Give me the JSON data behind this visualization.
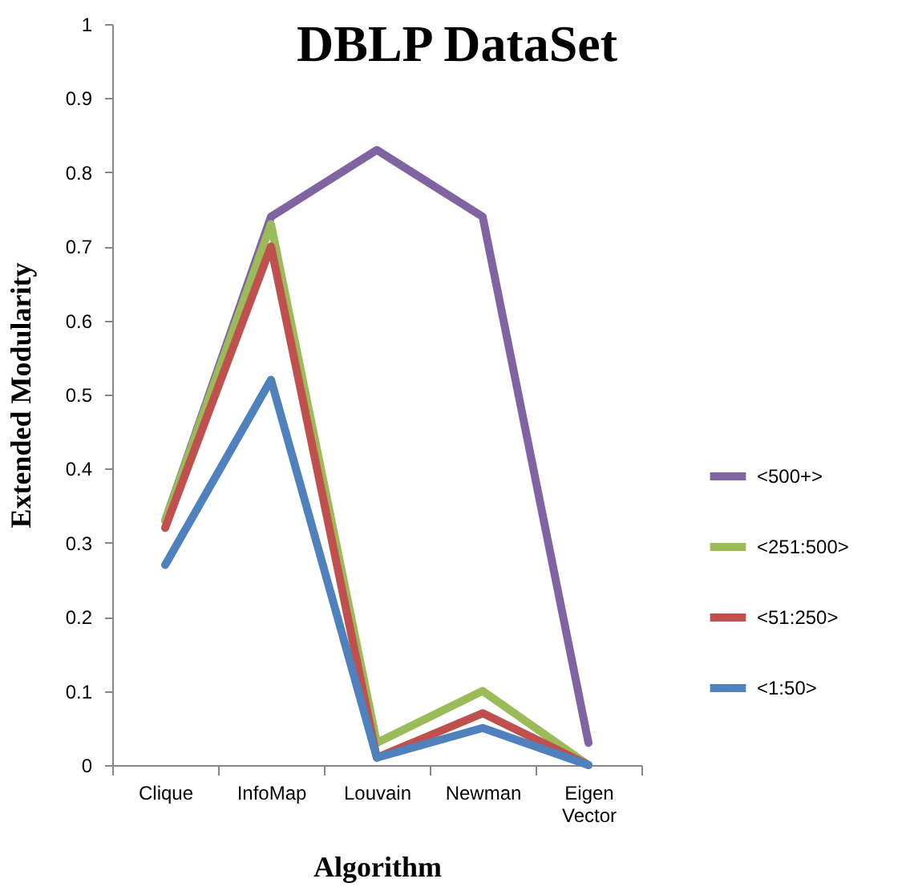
{
  "chart_data": {
    "type": "line",
    "title": "DBLP DataSet",
    "xlabel": "Algorithm",
    "ylabel": "Extended Modularity",
    "categories": [
      "Clique",
      "InfoMap",
      "Louvain",
      "Newman",
      "Eigen Vector"
    ],
    "series": [
      {
        "name": "<500+>",
        "color": "#8064a2",
        "values": [
          0.33,
          0.74,
          0.83,
          0.74,
          0.03
        ]
      },
      {
        "name": "<251:500>",
        "color": "#9bbb59",
        "values": [
          0.33,
          0.73,
          0.03,
          0.1,
          0
        ]
      },
      {
        "name": "<51:250>",
        "color": "#c0504d",
        "values": [
          0.32,
          0.7,
          0.01,
          0.07,
          0
        ]
      },
      {
        "name": "<1:50>",
        "color": "#4f81bd",
        "values": [
          0.27,
          0.52,
          0.01,
          0.05,
          0
        ]
      }
    ],
    "ylim": [
      0,
      1
    ],
    "yticks": [
      0,
      0.1,
      0.2,
      0.3,
      0.4,
      0.5,
      0.6,
      0.7,
      0.8,
      0.9,
      1
    ],
    "grid": false,
    "legend": "right",
    "marker": "none",
    "line_style": "solid"
  }
}
